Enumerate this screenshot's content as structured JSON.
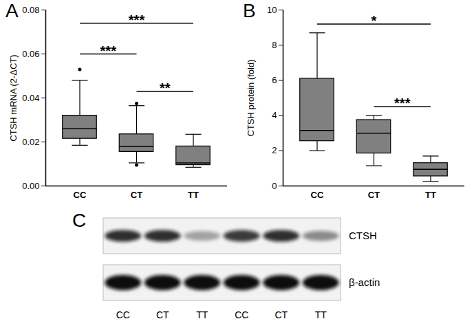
{
  "chart_data": [
    {
      "type": "box",
      "title": "A",
      "ylabel": "CTSH mRNA (2-ΔCT)",
      "color": "#808080",
      "categories": [
        "CC",
        "CT",
        "TT"
      ],
      "boxes": [
        {
          "min": 0.0185,
          "q1": 0.0215,
          "median": 0.026,
          "q3": 0.032,
          "max": 0.048,
          "outliers": [
            0.053
          ]
        },
        {
          "min": 0.0105,
          "q1": 0.0155,
          "median": 0.018,
          "q3": 0.0235,
          "max": 0.0365,
          "outliers": [
            0.0375,
            0.0095
          ]
        },
        {
          "min": 0.0085,
          "q1": 0.0095,
          "median": 0.0105,
          "q3": 0.018,
          "max": 0.0235,
          "outliers": []
        }
      ],
      "annotations": [
        {
          "from": "CC",
          "to": "TT",
          "y": 0.074,
          "label": "***"
        },
        {
          "from": "CC",
          "to": "CT",
          "y": 0.06,
          "label": "***"
        },
        {
          "from": "CT",
          "to": "TT",
          "y": 0.043,
          "label": "**"
        }
      ],
      "ylim": [
        0,
        0.08
      ],
      "yticks": [
        {
          "value": 0,
          "label": "0.00"
        },
        {
          "value": 0.02,
          "label": "0.02"
        },
        {
          "value": 0.04,
          "label": "0.04"
        },
        {
          "value": 0.06,
          "label": "0.06"
        },
        {
          "value": 0.08,
          "label": "0.08"
        }
      ]
    },
    {
      "type": "box",
      "title": "B",
      "ylabel": "CTSH protein (fold)",
      "color": "#808080",
      "categories": [
        "CC",
        "CT",
        "TT"
      ],
      "boxes": [
        {
          "min": 2.0,
          "q1": 2.55,
          "median": 3.15,
          "q3": 6.1,
          "max": 8.7,
          "outliers": []
        },
        {
          "min": 1.15,
          "q1": 1.85,
          "median": 3.0,
          "q3": 3.75,
          "max": 4.0,
          "outliers": []
        },
        {
          "min": 0.25,
          "q1": 0.55,
          "median": 0.95,
          "q3": 1.3,
          "max": 1.7,
          "outliers": []
        }
      ],
      "annotations": [
        {
          "from": "CC",
          "to": "TT",
          "y": 9.2,
          "label": "*"
        },
        {
          "from": "CT",
          "to": "TT",
          "y": 4.5,
          "label": "***"
        }
      ],
      "ylim": [
        0,
        10
      ],
      "yticks": [
        0,
        2,
        4,
        6,
        8,
        10
      ]
    }
  ],
  "blot": {
    "title": "C",
    "lanes": [
      "CC",
      "CT",
      "TT",
      "CC",
      "CT",
      "TT"
    ],
    "rows": [
      {
        "name": "CTSH",
        "intensities": [
          0.85,
          0.85,
          0.35,
          0.8,
          0.85,
          0.45
        ]
      },
      {
        "name": "β-actin",
        "intensities": [
          1,
          1,
          1,
          1,
          1,
          1
        ]
      }
    ]
  }
}
